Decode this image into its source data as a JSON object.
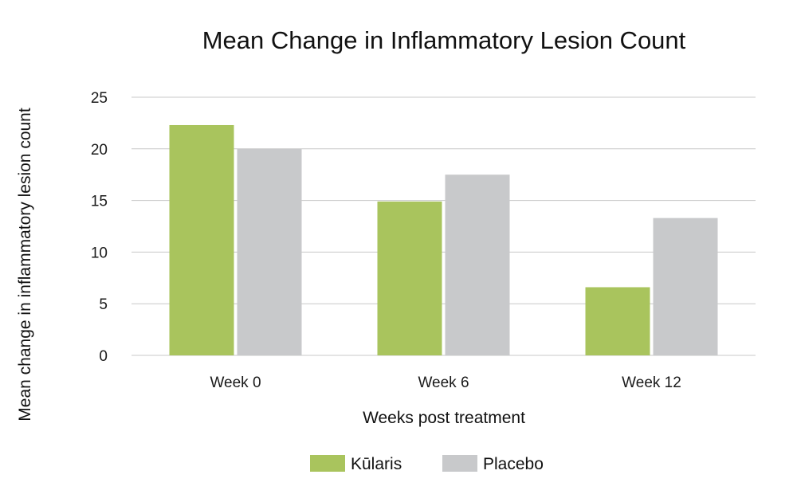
{
  "chart_data": {
    "type": "bar",
    "title": "Mean Change in Inflammatory Lesion Count",
    "xlabel": "Weeks post treatment",
    "ylabel": "Mean change in inflammatory lesion count",
    "categories": [
      "Week 0",
      "Week 6",
      "Week 12"
    ],
    "series": [
      {
        "name": "Kūlaris",
        "color": "#a9c45d",
        "values": [
          22.3,
          14.9,
          6.6
        ]
      },
      {
        "name": "Placebo",
        "color": "#c8c9cb",
        "values": [
          20.0,
          17.5,
          13.3
        ]
      }
    ],
    "ylim": [
      0,
      25
    ],
    "yticks": [
      "0",
      "5",
      "10",
      "15",
      "20",
      "25"
    ],
    "grid": true,
    "legend_position": "bottom-center"
  }
}
